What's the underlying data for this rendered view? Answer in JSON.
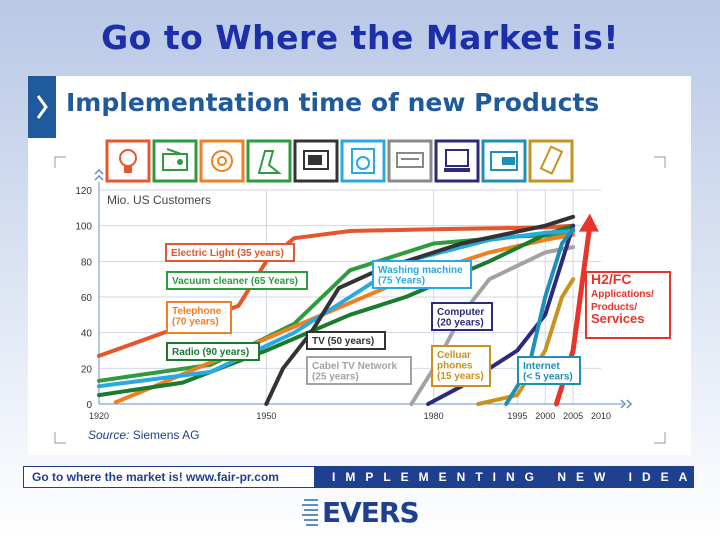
{
  "page": {
    "main_title": "Go to Where the Market is!",
    "chart_title": "Implementation time of new Products"
  },
  "icons": [
    {
      "name": "lightbulb-icon",
      "color": "#e8542b"
    },
    {
      "name": "radio-icon",
      "color": "#2e9b3f"
    },
    {
      "name": "telephone-icon",
      "color": "#f07f22"
    },
    {
      "name": "vacuum-cleaner-icon",
      "color": "#2e9b3f"
    },
    {
      "name": "television-icon",
      "color": "#333333"
    },
    {
      "name": "washing-machine-icon",
      "color": "#27a9e1"
    },
    {
      "name": "cable-tv-icon",
      "color": "#888888"
    },
    {
      "name": "computer-icon",
      "color": "#2b2b7a"
    },
    {
      "name": "internet-icon",
      "color": "#1f8fb8"
    },
    {
      "name": "cellular-phone-icon",
      "color": "#c8921e"
    }
  ],
  "chart_data": {
    "type": "line",
    "title": "Implementation time of new Products",
    "ylabel": "Mio. US Customers",
    "xlim": [
      1920,
      2010
    ],
    "ylim": [
      0,
      120
    ],
    "x_ticks": [
      1920,
      1950,
      1980,
      1995,
      2000,
      2005,
      2010
    ],
    "y_ticks": [
      0,
      20,
      40,
      60,
      80,
      100,
      120
    ],
    "source": "Siemens AG",
    "series": [
      {
        "name": "Electric Light (35 years)",
        "label_lines": [
          "Electric Light (35 years)"
        ],
        "color": "#e8542b",
        "x": [
          1920,
          1945,
          1950,
          1955,
          1965,
          1980,
          2000,
          2005
        ],
        "y": [
          27,
          55,
          80,
          93,
          97,
          98,
          99,
          100
        ]
      },
      {
        "name": "Vacuum cleaner (65 Years)",
        "label_lines": [
          "Vacuum cleaner (65 Years)"
        ],
        "color": "#2e9b3f",
        "x": [
          1920,
          1940,
          1955,
          1965,
          1980,
          1995,
          2005
        ],
        "y": [
          13,
          22,
          45,
          75,
          90,
          94,
          95
        ]
      },
      {
        "name": "Telephone (70 years)",
        "label_lines": [
          "Telephone",
          "(70 years)"
        ],
        "color": "#f07f22",
        "x": [
          1923,
          1930,
          1945,
          1960,
          1975,
          1990,
          2000,
          2005
        ],
        "y": [
          1,
          10,
          30,
          50,
          70,
          85,
          92,
          95
        ]
      },
      {
        "name": "Radio (90 years)",
        "label_lines": [
          "Radio (90 years)"
        ],
        "color": "#1a7a2e",
        "x": [
          1920,
          1935,
          1950,
          1965,
          1975,
          1990,
          2000,
          2005
        ],
        "y": [
          5,
          12,
          30,
          50,
          60,
          80,
          95,
          100
        ]
      },
      {
        "name": "Washing machine (75 Years)",
        "label_lines": [
          "Washing machine",
          "(75 Years)"
        ],
        "color": "#27a9e1",
        "x": [
          1920,
          1940,
          1955,
          1965,
          1975,
          1990,
          2000,
          2005
        ],
        "y": [
          10,
          18,
          40,
          60,
          80,
          92,
          96,
          97
        ]
      },
      {
        "name": "TV (50 years)",
        "label_lines": [
          "TV (50 years)"
        ],
        "color": "#333333",
        "x": [
          1950,
          1953,
          1958,
          1963,
          1970,
          1985,
          2000,
          2005
        ],
        "y": [
          0,
          20,
          40,
          65,
          75,
          90,
          100,
          105
        ]
      },
      {
        "name": "Cabel TV Network (25 years)",
        "label_lines": [
          "Cabel TV Network",
          "(25 years)"
        ],
        "color": "#a3a3a3",
        "x": [
          1976,
          1980,
          1985,
          1990,
          2000,
          2005
        ],
        "y": [
          0,
          20,
          50,
          70,
          85,
          88
        ]
      },
      {
        "name": "Computer (20 years)",
        "label_lines": [
          "Computer",
          "(20 years)"
        ],
        "color": "#2b2b7a",
        "x": [
          1979,
          1985,
          1995,
          2000,
          2003,
          2005
        ],
        "y": [
          0,
          10,
          30,
          50,
          80,
          100
        ]
      },
      {
        "name": "Celluar phones (15 years)",
        "label_lines": [
          "Celluar",
          "phones",
          "(15 years)"
        ],
        "color": "#c8921e",
        "x": [
          1988,
          1995,
          2000,
          2003,
          2005
        ],
        "y": [
          0,
          5,
          30,
          60,
          70
        ]
      },
      {
        "name": "Internet (< 5 years)",
        "label_lines": [
          "Internet",
          "(< 5 years)"
        ],
        "color": "#1f8fb8",
        "x": [
          1993,
          1997,
          2000,
          2003,
          2005
        ],
        "y": [
          0,
          20,
          60,
          90,
          98
        ]
      },
      {
        "name": "H2/FC Applications/ Products/ Services",
        "label_lines": [
          "H2/FC",
          "Applications/",
          "Products/",
          "Services"
        ],
        "color": "#e8342b",
        "x": [
          2002,
          2005,
          2008
        ],
        "y": [
          0,
          30,
          100
        ]
      }
    ]
  },
  "footer": {
    "left_text": "Go to where the market is!   www.fair-pr.com",
    "right_text": "IMPLEMENTING NEW IDEAS",
    "logo_text": "EVERS"
  }
}
